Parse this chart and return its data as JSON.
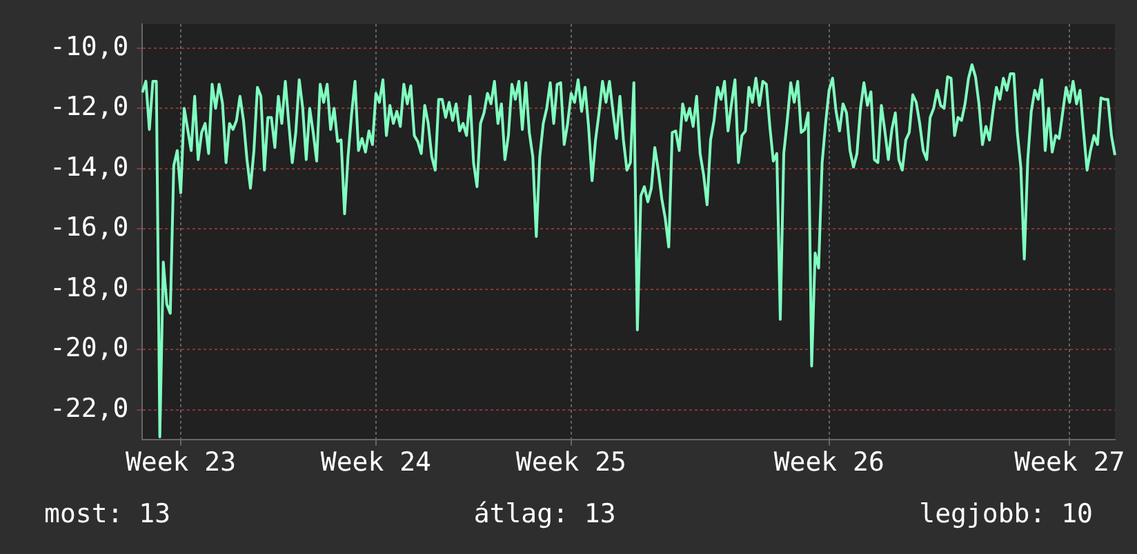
{
  "chart_data": {
    "type": "line",
    "annotations": [
      "most: 13",
      "átlag: 13",
      "legjobb: 10"
    ],
    "categories": [
      null,
      null,
      null,
      null,
      null,
      null,
      null,
      null,
      null,
      null,
      null,
      "Week 23",
      null,
      null,
      null,
      null,
      null,
      null,
      null,
      null,
      null,
      null,
      null,
      null,
      null,
      null,
      null,
      null,
      null,
      null,
      null,
      null,
      null,
      null,
      null,
      null,
      null,
      null,
      null,
      null,
      null,
      null,
      null,
      null,
      null,
      null,
      null,
      null,
      null,
      null,
      null,
      null,
      null,
      null,
      null,
      null,
      null,
      null,
      null,
      null,
      null,
      null,
      null,
      null,
      null,
      null,
      null,
      "Week 24",
      null,
      null,
      null,
      null,
      null,
      null,
      null,
      null,
      null,
      null,
      null,
      null,
      null,
      null,
      null,
      null,
      null,
      null,
      null,
      null,
      null,
      null,
      null,
      null,
      null,
      null,
      null,
      null,
      null,
      null,
      null,
      null,
      null,
      null,
      null,
      null,
      null,
      null,
      null,
      null,
      null,
      null,
      null,
      null,
      null,
      null,
      null,
      null,
      null,
      null,
      null,
      null,
      null,
      null,
      null,
      "Week 25",
      null,
      null,
      null,
      null,
      null,
      null,
      null,
      null,
      null,
      null,
      null,
      null,
      null,
      null,
      null,
      null,
      null,
      null,
      null,
      null,
      null,
      null,
      null,
      null,
      null,
      null,
      null,
      null,
      null,
      null,
      null,
      null,
      null,
      null,
      null,
      null,
      null,
      null,
      null,
      null,
      null,
      null,
      null,
      null,
      null,
      null,
      null,
      null,
      null,
      null,
      null,
      null,
      null,
      null,
      null,
      null,
      null,
      null,
      null,
      null,
      null,
      null,
      null,
      null,
      null,
      null,
      null,
      null,
      null,
      null,
      null,
      null,
      null,
      "Week 26",
      null,
      null,
      null,
      null,
      null,
      null,
      null,
      null,
      null,
      null,
      null,
      null,
      null,
      null,
      null,
      null,
      null,
      null,
      null,
      null,
      null,
      null,
      null,
      null,
      null,
      null,
      null,
      null,
      null,
      null,
      null,
      null,
      null,
      null,
      null,
      null,
      null,
      null,
      null,
      null,
      null,
      null,
      null,
      null,
      null,
      null,
      null,
      null,
      null,
      null,
      null,
      null,
      null,
      null,
      null,
      null,
      null,
      null,
      null,
      null,
      null,
      null,
      null,
      null,
      null,
      null,
      null,
      null,
      "Week 27",
      null,
      null,
      null,
      null,
      null,
      null,
      null,
      null,
      null,
      null,
      null,
      null,
      null
    ],
    "ylim": [
      -23.0,
      -9.2
    ],
    "yticks": [
      {
        "value": -22,
        "label": "-22,0"
      },
      {
        "value": -20,
        "label": "-20,0"
      },
      {
        "value": -18,
        "label": "-18,0"
      },
      {
        "value": -16,
        "label": "-16,0"
      },
      {
        "value": -14,
        "label": "-14,0"
      },
      {
        "value": -12,
        "label": "-12,0"
      },
      {
        "value": -10,
        "label": "-10,0"
      }
    ],
    "grid": true,
    "legend": false,
    "marker": "none",
    "line_style": "solid",
    "series": [
      {
        "color": "#80ffc0",
        "values": [
          -11.47,
          -11.1,
          -12.7,
          -11.1,
          -11.1,
          -22.9,
          -17.1,
          -18.5,
          -18.8,
          -13.9,
          -13.4,
          -14.8,
          -12.0,
          -12.7,
          -13.4,
          -11.6,
          -13.7,
          -12.8,
          -12.5,
          -13.5,
          -11.2,
          -12.0,
          -11.2,
          -11.85,
          -13.8,
          -12.5,
          -12.7,
          -12.4,
          -11.6,
          -12.4,
          -13.7,
          -14.65,
          -13.4,
          -11.3,
          -11.6,
          -14.05,
          -12.3,
          -12.3,
          -13.3,
          -11.6,
          -12.5,
          -11.1,
          -12.5,
          -13.8,
          -12.8,
          -11.05,
          -12.0,
          -13.7,
          -12.0,
          -12.8,
          -13.75,
          -11.2,
          -11.8,
          -11.2,
          -12.7,
          -12.0,
          -13.1,
          -13.05,
          -15.5,
          -13.6,
          -12.2,
          -11.1,
          -13.4,
          -13.0,
          -13.45,
          -12.75,
          -13.2,
          -11.5,
          -11.8,
          -11.05,
          -12.9,
          -11.9,
          -12.5,
          -12.1,
          -12.6,
          -11.2,
          -11.85,
          -11.25,
          -12.9,
          -13.1,
          -13.5,
          -11.9,
          -12.5,
          -13.6,
          -14.05,
          -11.7,
          -11.7,
          -12.3,
          -11.8,
          -12.4,
          -11.85,
          -12.75,
          -12.5,
          -12.9,
          -11.6,
          -13.8,
          -14.6,
          -12.5,
          -12.15,
          -11.5,
          -11.85,
          -11.1,
          -12.5,
          -11.85,
          -13.7,
          -12.9,
          -11.2,
          -11.7,
          -11.1,
          -12.7,
          -11.15,
          -12.8,
          -13.6,
          -16.25,
          -13.6,
          -12.5,
          -12.0,
          -11.15,
          -12.5,
          -11.2,
          -11.15,
          -13.2,
          -12.5,
          -11.5,
          -11.8,
          -11.05,
          -12.1,
          -11.3,
          -12.6,
          -14.4,
          -13.05,
          -12.15,
          -11.1,
          -11.8,
          -11.1,
          -12.1,
          -13.0,
          -11.6,
          -13.05,
          -14.05,
          -13.8,
          -11.15,
          -19.35,
          -14.9,
          -14.6,
          -15.1,
          -14.65,
          -13.3,
          -14.05,
          -15.0,
          -15.65,
          -16.6,
          -12.8,
          -12.75,
          -13.4,
          -11.85,
          -12.4,
          -12.0,
          -12.6,
          -11.6,
          -13.5,
          -14.2,
          -15.2,
          -13.05,
          -12.4,
          -11.3,
          -11.7,
          -11.1,
          -12.75,
          -11.85,
          -11.05,
          -13.8,
          -12.9,
          -12.75,
          -11.3,
          -11.8,
          -11.0,
          -11.9,
          -11.1,
          -11.2,
          -12.6,
          -13.75,
          -13.5,
          -19.0,
          -13.5,
          -12.4,
          -11.15,
          -11.8,
          -11.1,
          -12.8,
          -12.7,
          -12.15,
          -20.55,
          -16.8,
          -17.3,
          -13.8,
          -12.5,
          -11.4,
          -11.0,
          -12.1,
          -12.75,
          -11.85,
          -12.15,
          -13.4,
          -13.95,
          -13.5,
          -12.0,
          -11.15,
          -11.9,
          -11.45,
          -13.7,
          -13.8,
          -11.9,
          -12.75,
          -13.7,
          -12.7,
          -12.15,
          -13.7,
          -14.05,
          -13.05,
          -12.8,
          -11.55,
          -11.8,
          -12.5,
          -13.4,
          -13.7,
          -12.3,
          -12.0,
          -11.4,
          -11.9,
          -12.0,
          -10.95,
          -11.0,
          -12.9,
          -12.3,
          -12.4,
          -11.85,
          -11.0,
          -10.55,
          -10.95,
          -11.85,
          -13.2,
          -12.6,
          -13.05,
          -12.1,
          -11.3,
          -11.7,
          -11.0,
          -11.4,
          -10.85,
          -10.85,
          -12.8,
          -13.95,
          -17.0,
          -13.7,
          -12.1,
          -11.4,
          -11.7,
          -11.05,
          -13.4,
          -12.0,
          -13.45,
          -12.9,
          -13.0,
          -12.15,
          -11.3,
          -11.8,
          -11.1,
          -11.85,
          -11.4,
          -12.75,
          -14.05,
          -13.4,
          -12.9,
          -13.2,
          -11.65,
          -11.7,
          -11.7,
          -12.9,
          -13.55
        ]
      }
    ]
  }
}
